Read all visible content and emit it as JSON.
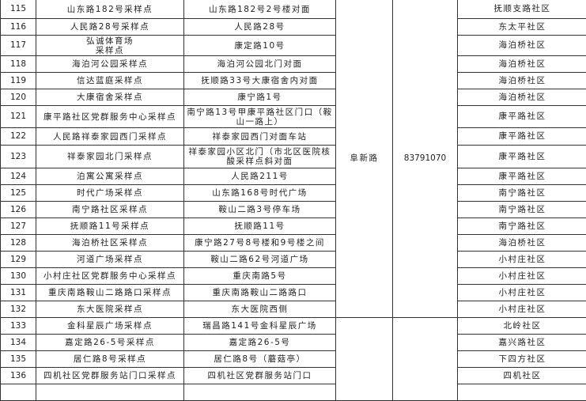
{
  "groups": [
    {
      "street": "阜新路",
      "phone": "83791070",
      "rows": [
        {
          "no": "115",
          "site": "山东路182号采样点",
          "address": "山东路182号2号楼对面",
          "community": "抚顺支路社区"
        },
        {
          "no": "116",
          "site": "人民路28号采样点",
          "address": "人民路28号",
          "community": "东太平社区"
        },
        {
          "no": "117",
          "site": "弘诚体育场\n采样点",
          "address": "康定路10号",
          "community": "海泊桥社区"
        },
        {
          "no": "118",
          "site": "海泊河公园采样点",
          "address": "海泊河公园北门对面",
          "community": "海泊桥社区"
        },
        {
          "no": "119",
          "site": "信达蓝庭采样点",
          "address": "抚顺路33号大康宿舍内对面",
          "community": "海泊桥社区"
        },
        {
          "no": "120",
          "site": "大康宿舍采样点",
          "address": "康宁路1号",
          "community": "海泊桥社区"
        },
        {
          "no": "121",
          "site": "康平路社区党群服务中心采样点",
          "address": "南宁路13号甲康平路社区门口（鞍山一路上）",
          "community": "康平路社区"
        },
        {
          "no": "122",
          "site": "人民路祥泰家园西门采样点",
          "address": "祥泰家园西门对面车站",
          "community": "康平路社区"
        },
        {
          "no": "123",
          "site": "祥泰家园北门采样点",
          "address": "祥泰家园小区北门（市北区医院核酸采样点斜对面",
          "community": "康平路社区"
        },
        {
          "no": "124",
          "site": "泊寓公寓采样点",
          "address": "人民路211号",
          "community": "康平路社区"
        },
        {
          "no": "125",
          "site": "时代广场采样点",
          "address": "山东路168号时代广场",
          "community": "南宁路社区"
        },
        {
          "no": "126",
          "site": "南宁路社区采样点",
          "address": "鞍山二路3号停车场",
          "community": "南宁路社区"
        },
        {
          "no": "127",
          "site": "抚顺路11号采样点",
          "address": "抚顺路11号",
          "community": "南宁路社区"
        },
        {
          "no": "128",
          "site": "海泊桥社区采样点",
          "address": "康宁路27号8号楼和9号楼之间",
          "community": "海泊桥社区"
        },
        {
          "no": "129",
          "site": "河道广场采样点",
          "address": "鞍山二路62号河道广场",
          "community": "小村庄社区"
        },
        {
          "no": "130",
          "site": "小村庄社区党群服务中心采样点",
          "address": "重庆南路5号",
          "community": "小村庄社区"
        },
        {
          "no": "131",
          "site": "重庆南路鞍山二路路口采样点",
          "address": "重庆南路鞍山二路路口",
          "community": "小村庄社区"
        },
        {
          "no": "132",
          "site": "东大医院采样点",
          "address": "东大医院西侧",
          "community": "小村庄社区"
        }
      ]
    },
    {
      "street": "",
      "phone": "",
      "rows": [
        {
          "no": "133",
          "site": "金科星辰广场采样点",
          "address": "瑞昌路141号金科星辰广场",
          "community": "北岭社区"
        },
        {
          "no": "134",
          "site": "嘉定路26-5号采样点",
          "address": "嘉定路26-5号",
          "community": "嘉兴路社区"
        },
        {
          "no": "135",
          "site": "居仁路8号采样点",
          "address": "居仁路8号（蘑菇亭）",
          "community": "下四方社区"
        },
        {
          "no": "136",
          "site": "四机社区党群服务站门口采样点",
          "address": "四机社区党群服务站门口",
          "community": "四机社区"
        }
      ]
    }
  ]
}
